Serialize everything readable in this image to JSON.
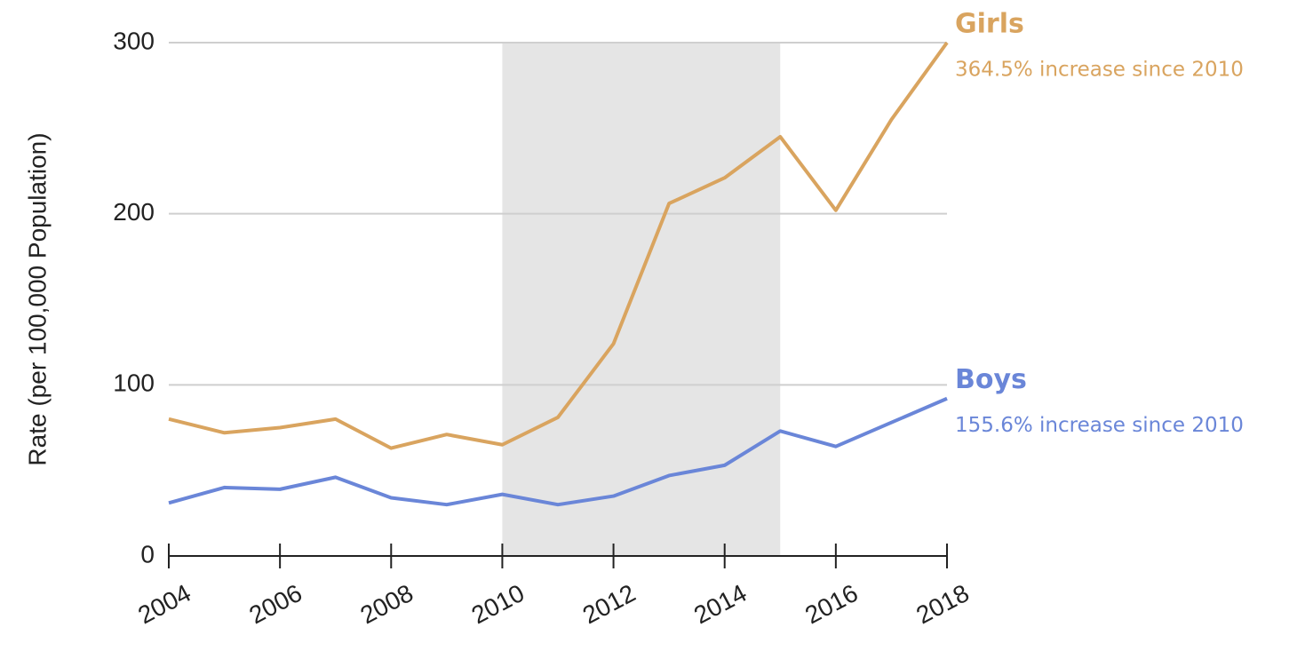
{
  "chart_data": {
    "type": "line",
    "y_label": "Rate (per 100,000 Population)",
    "x": [
      2004,
      2005,
      2006,
      2007,
      2008,
      2009,
      2010,
      2011,
      2012,
      2013,
      2014,
      2015,
      2016,
      2017,
      2018
    ],
    "series": [
      {
        "name": "Girls",
        "annotation": "364.5% increase since 2010",
        "color": "#d9a45f",
        "values": [
          80,
          72,
          75,
          80,
          63,
          71,
          65,
          81,
          124,
          206,
          221,
          245,
          202,
          255,
          300
        ]
      },
      {
        "name": "Boys",
        "annotation": "155.6% increase since 2010",
        "color": "#6a86d8",
        "values": [
          31,
          40,
          39,
          46,
          34,
          30,
          36,
          30,
          35,
          47,
          53,
          73,
          64,
          78,
          92
        ]
      }
    ],
    "shaded_range": [
      2010,
      2015
    ],
    "shade_color": "#e5e5e5",
    "xlim": [
      2004,
      2018
    ],
    "xticks": [
      2004,
      2006,
      2008,
      2010,
      2012,
      2014,
      2016,
      2018
    ],
    "ylim": [
      0,
      300
    ],
    "yticks": [
      0,
      100,
      200,
      300
    ],
    "grid": true
  }
}
